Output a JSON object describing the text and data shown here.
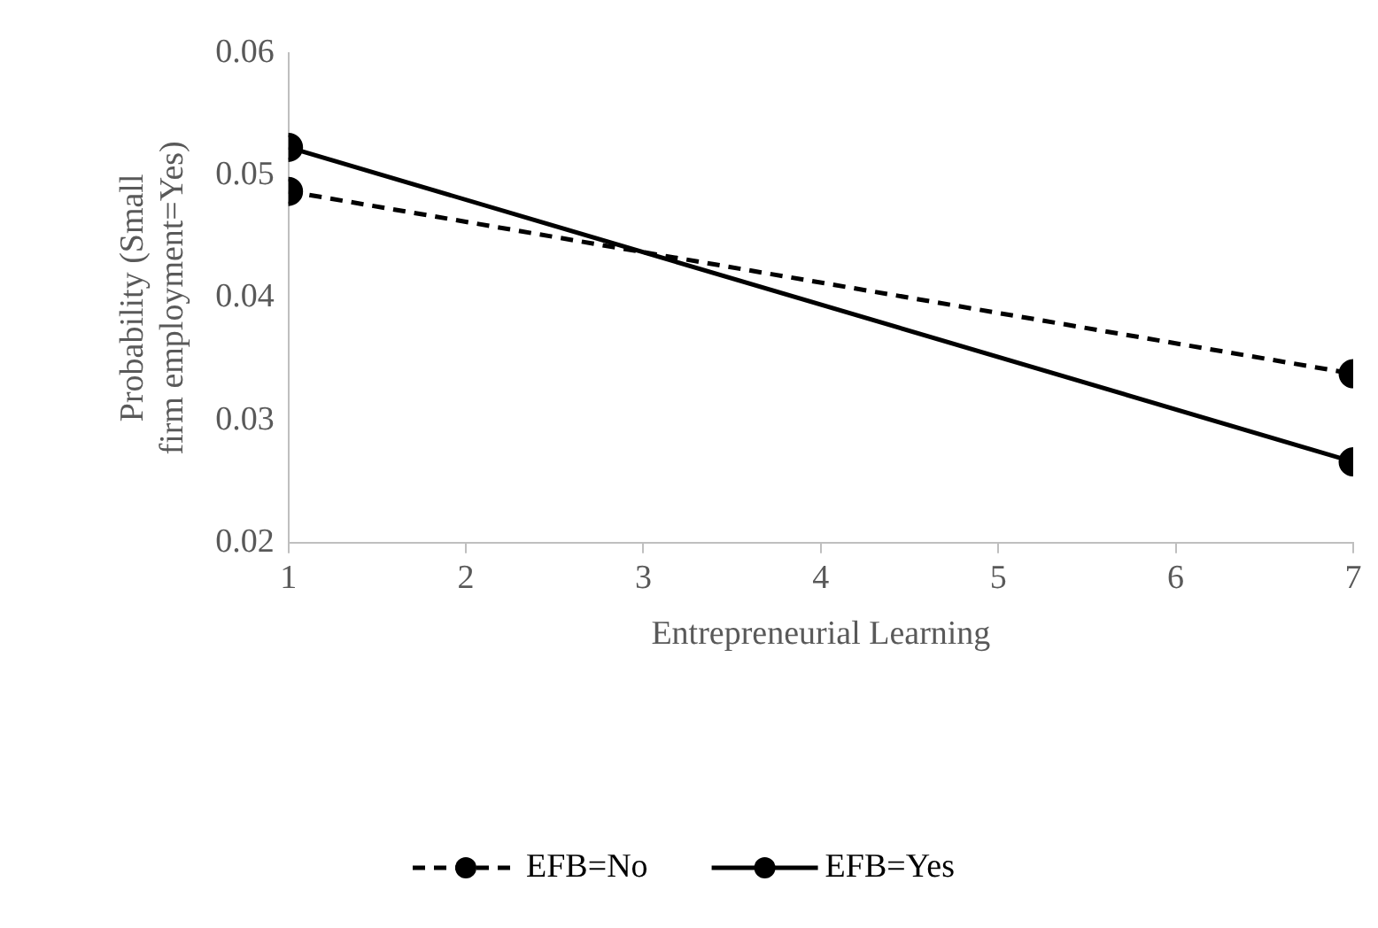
{
  "chart_data": {
    "type": "line",
    "xlabel": "Entrepreneurial Learning",
    "ylabel": "Probability (Small firm employment=Yes)",
    "x": [
      1,
      7
    ],
    "xlim": [
      1,
      7
    ],
    "xticks": [
      1,
      2,
      3,
      4,
      5,
      6,
      7
    ],
    "ylim": [
      0.02,
      0.06
    ],
    "yticks": [
      0.02,
      0.03,
      0.04,
      0.05,
      0.06
    ],
    "series": [
      {
        "name": "EFB=No",
        "color": "#000000",
        "values": [
          0.0487,
          0.0338
        ],
        "line_style": "dashed"
      },
      {
        "name": "EFB=Yes",
        "color": "#000000",
        "values": [
          0.0523,
          0.0266
        ],
        "line_style": "solid"
      }
    ],
    "marker": "circle",
    "grid": false,
    "legend": "bottom"
  }
}
